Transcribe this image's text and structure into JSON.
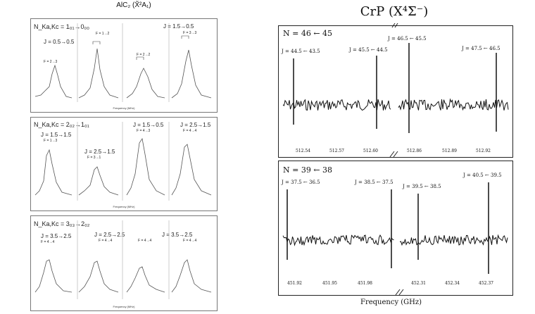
{
  "left_figure": {
    "title": "AlC₂ (X̃²A₁)",
    "panels": [
      {
        "header": "N_Ka,Kc = 1₀₁→0₀₀",
        "transitions": [
          "J = 0.5→0.5",
          "J = 1.5→0.5"
        ],
        "hyperfine": [
          "F = 2→3",
          "F = 1→2",
          "F = 2→2",
          "F = 3→3"
        ],
        "xlabel": "Frequency (MHz)"
      },
      {
        "header": "N_Ka,Kc = 2₀₂→1₀₁",
        "transitions": [
          "J = 1.5→1.5",
          "J = 2.5→1.5",
          "J = 1.5→0.5",
          "J = 2.5→1.5"
        ],
        "hyperfine": [
          "F = 1→3",
          "F = 3→1",
          "F = 4→3",
          "F = 4→4"
        ],
        "xlabel": "Frequency (MHz)"
      },
      {
        "header": "N_Ka,Kc = 3₀₃→2₀₂",
        "transitions": [
          "J = 3.5→2.5",
          "J = 2.5→2.5",
          "J = 3.5→2.5"
        ],
        "hyperfine": [
          "F = 4→4",
          "F = 4→4",
          "F = 4→4",
          "F = 4→4"
        ],
        "xlabel": "Frequency (MHz)"
      }
    ]
  },
  "right_figure": {
    "title": "CrP (X⁴Σ⁻)",
    "xlabel": "Frequency (GHz)",
    "panels": [
      {
        "header": "N = 46 ← 45",
        "lines": [
          "J = 44.5 ← 43.5",
          "J = 45.5 ← 44.5",
          "J = 46.5 ← 45.5",
          "J = 47.5 ← 46.5"
        ],
        "ticks": [
          "512.54",
          "512.57",
          "512.60",
          "512.86",
          "512.89",
          "512.92"
        ]
      },
      {
        "header": "N = 39 ← 38",
        "lines": [
          "J = 37.5 ← 36.5",
          "J = 38.5 ← 37.5",
          "J = 39.5 ← 38.5",
          "J = 40.5 ← 39.5"
        ],
        "ticks": [
          "451.92",
          "451.95",
          "451.98",
          "452.31",
          "452.34",
          "452.37"
        ]
      }
    ]
  }
}
